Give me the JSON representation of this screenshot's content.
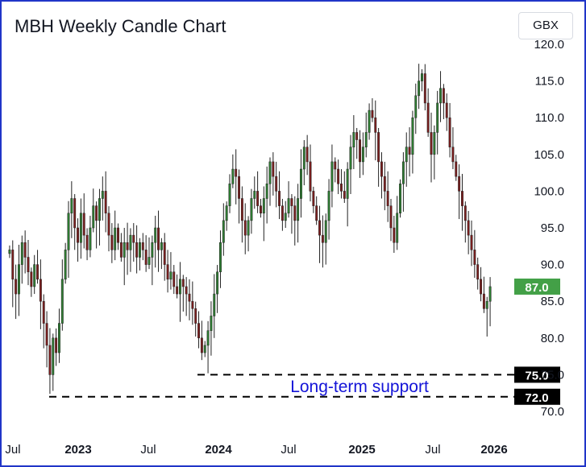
{
  "title": "MBH Weekly Candle Chart",
  "currency_button": "GBX",
  "chart_data": {
    "type": "candlestick",
    "title": "MBH Weekly Candle Chart",
    "currency": "GBX",
    "interval": "weekly",
    "ylim": [
      69,
      121
    ],
    "y_ticks": [
      "70.0",
      "75.0",
      "80.0",
      "85.0",
      "90.0",
      "95.0",
      "100.0",
      "105.0",
      "110.0",
      "115.0",
      "120.0"
    ],
    "x_ticks": [
      {
        "label": "Jul",
        "bold": false
      },
      {
        "label": "2023",
        "bold": true
      },
      {
        "label": "Jul",
        "bold": false
      },
      {
        "label": "2024",
        "bold": true
      },
      {
        "label": "Jul",
        "bold": false
      },
      {
        "label": "2025",
        "bold": true
      },
      {
        "label": "Jul",
        "bold": false
      },
      {
        "label": "2026",
        "bold": true
      }
    ],
    "last_price": {
      "value": 87.0,
      "label": "87.0",
      "color": "#43a047"
    },
    "support_levels": [
      {
        "value": 75.0,
        "label": "75.0"
      },
      {
        "value": 72.0,
        "label": "72.0"
      }
    ],
    "annotation": "Long-term support",
    "colors": {
      "up": "#2e7d32",
      "down": "#7b1e1e",
      "annotation": "#1414d8"
    },
    "close": [
      92,
      88,
      86,
      90,
      93,
      91,
      89,
      87,
      90,
      88,
      85,
      82,
      79,
      75,
      80,
      78,
      82,
      88,
      92,
      97,
      99,
      95,
      93,
      97,
      94,
      92,
      95,
      98,
      96,
      99,
      100,
      97,
      94,
      92,
      95,
      93,
      91,
      93,
      92,
      94,
      93,
      91,
      93,
      92,
      90,
      91,
      93,
      95,
      92,
      93,
      90,
      88,
      89,
      87,
      86,
      88,
      87,
      86,
      85,
      84,
      82,
      80,
      78,
      79,
      81,
      83,
      86,
      89,
      93,
      96,
      98,
      101,
      103,
      102,
      99,
      96,
      94,
      96,
      99,
      100,
      98,
      97,
      99,
      101,
      104,
      102,
      100,
      98,
      96,
      97,
      99,
      98,
      96,
      99,
      103,
      106,
      104,
      100,
      98,
      96,
      94,
      93,
      96,
      100,
      104,
      103,
      101,
      100,
      99,
      103,
      106,
      108,
      107,
      104,
      106,
      108,
      111,
      110,
      108,
      104,
      102,
      100,
      98,
      95,
      93,
      97,
      101,
      104,
      106,
      105,
      110,
      113,
      115,
      116,
      112,
      108,
      105,
      108,
      112,
      114,
      112,
      110,
      106,
      104,
      102,
      100,
      98,
      96,
      94,
      92,
      90,
      88,
      86,
      84,
      85,
      87
    ]
  }
}
